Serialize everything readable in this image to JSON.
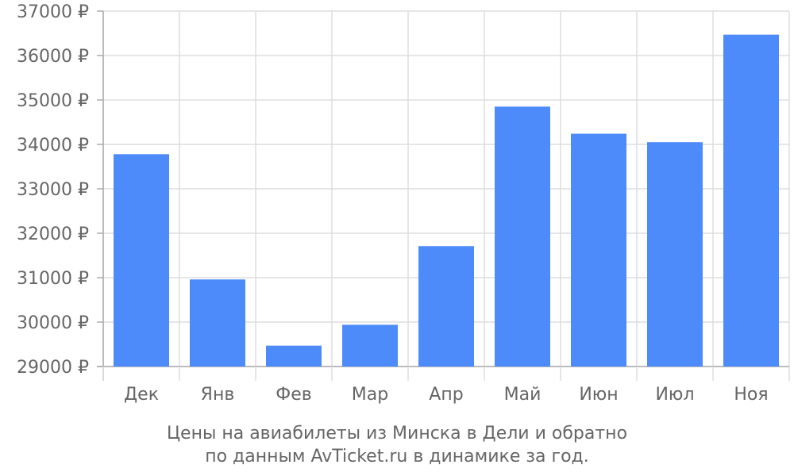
{
  "chart_data": {
    "type": "bar",
    "categories": [
      "Дек",
      "Янв",
      "Фев",
      "Мар",
      "Апр",
      "Май",
      "Июн",
      "Июл",
      "Ноя"
    ],
    "values": [
      33780,
      30960,
      29470,
      29940,
      31710,
      34850,
      34240,
      34050,
      36470
    ],
    "ylim": [
      29000,
      37000
    ],
    "yticks": [
      29000,
      30000,
      31000,
      32000,
      33000,
      34000,
      35000,
      36000,
      37000
    ],
    "y_unit": "₽",
    "grid": true,
    "bar_color": "#4d8afa",
    "caption_line1": "Цены на авиабилеты из Минска в Дели и обратно",
    "caption_line2": "по данным AvTicket.ru в динамике за год."
  }
}
